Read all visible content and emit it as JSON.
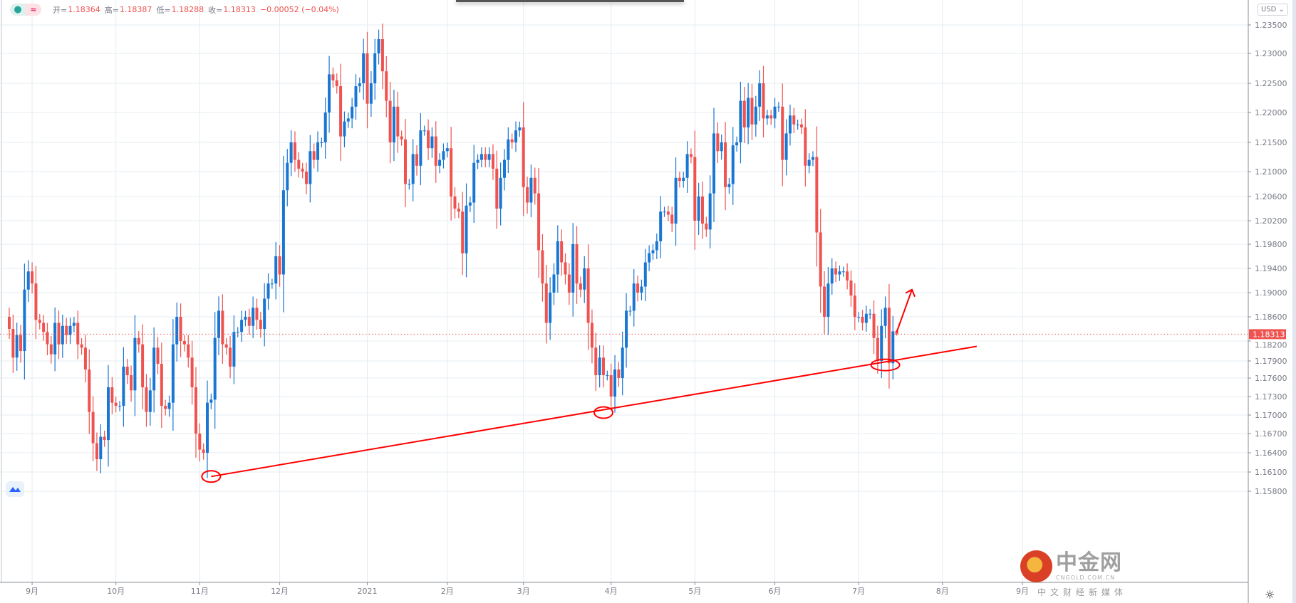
{
  "legend": {
    "open_label": "开=",
    "open": "1.18364",
    "high_label": "高=",
    "high": "1.18387",
    "low_label": "低=",
    "low": "1.18288",
    "close_label": "收=",
    "close": "1.18313",
    "change": "−0.00052 (−0.04%)",
    "status_icon": "dot-icon",
    "approx_icon": "≈"
  },
  "currency_button": "USD ⌄",
  "watermark": {
    "name": "中金网",
    "url": "CNGOLD.COM.CN",
    "tagline": "中文财经新媒体"
  },
  "colors": {
    "up": "#1976d2",
    "down": "#ef5350",
    "grid": "#e4ecf2",
    "trendline": "#ff0000",
    "price_label": "#ef5350"
  },
  "chart_data": {
    "type": "candlestick",
    "y_ticks": [
      1.235,
      1.23,
      1.225,
      1.22,
      1.215,
      1.21,
      1.206,
      1.202,
      1.198,
      1.194,
      1.19,
      1.186,
      1.182,
      1.179,
      1.176,
      1.173,
      1.17,
      1.167,
      1.164,
      1.161,
      1.158
    ],
    "y_tick_labels": [
      "1.23500",
      "1.23000",
      "1.22500",
      "1.22000",
      "1.21500",
      "1.21000",
      "1.20600",
      "1.20200",
      "1.19800",
      "1.19400",
      "1.19000",
      "1.18600",
      "1.18200",
      "1.17900",
      "1.17600",
      "1.17300",
      "1.17000",
      "1.16700",
      "1.16400",
      "1.16100",
      "1.15800"
    ],
    "x_tick_labels": [
      "9月",
      "10月",
      "11月",
      "12月",
      "2021",
      "2月",
      "3月",
      "4月",
      "5月",
      "6月",
      "7月",
      "8月",
      "9月"
    ],
    "x_tick_bars": [
      6,
      28,
      50,
      71,
      94,
      115,
      135,
      158,
      180,
      201,
      223,
      245,
      266
    ],
    "current_price": 1.18313,
    "current_price_label": "1.18313",
    "grid": true,
    "first_open": 1.186,
    "closes": [
      1.184,
      1.1795,
      1.183,
      1.1805,
      1.1905,
      1.1935,
      1.1915,
      1.1855,
      1.185,
      1.1835,
      1.1815,
      1.18,
      1.185,
      1.1815,
      1.1845,
      1.183,
      1.1845,
      1.185,
      1.1815,
      1.181,
      1.1775,
      1.1705,
      1.1655,
      1.163,
      1.1665,
      1.166,
      1.1745,
      1.172,
      1.1715,
      1.1715,
      1.178,
      1.1765,
      1.174,
      1.1825,
      1.1815,
      1.1745,
      1.1705,
      1.174,
      1.181,
      1.1785,
      1.1715,
      1.171,
      1.172,
      1.1815,
      1.186,
      1.182,
      1.1815,
      1.1795,
      1.1745,
      1.167,
      1.1645,
      1.164,
      1.172,
      1.1725,
      1.1825,
      1.187,
      1.1815,
      1.181,
      1.178,
      1.1835,
      1.1835,
      1.1855,
      1.186,
      1.1845,
      1.1875,
      1.1855,
      1.184,
      1.189,
      1.1915,
      1.1915,
      1.196,
      1.193,
      1.207,
      1.2115,
      1.215,
      1.212,
      1.2105,
      1.21,
      1.208,
      1.2135,
      1.212,
      1.215,
      1.215,
      1.22,
      1.2265,
      1.2255,
      1.2245,
      1.216,
      1.2185,
      1.219,
      1.221,
      1.2245,
      1.225,
      1.23,
      1.2215,
      1.225,
      1.23,
      1.2325,
      1.227,
      1.222,
      1.215,
      1.221,
      1.216,
      1.2155,
      1.208,
      1.208,
      1.213,
      1.211,
      1.217,
      1.217,
      1.214,
      1.216,
      1.211,
      1.212,
      1.2135,
      1.214,
      1.206,
      1.204,
      1.2035,
      1.1965,
      1.2045,
      1.205,
      1.2115,
      1.212,
      1.213,
      1.212,
      1.213,
      1.2105,
      1.204,
      1.209,
      1.212,
      1.2155,
      1.215,
      1.217,
      1.2175,
      1.2075,
      1.205,
      1.209,
      1.2065,
      1.197,
      1.1915,
      1.185,
      1.19,
      1.193,
      1.1985,
      1.195,
      1.193,
      1.19,
      1.198,
      1.1915,
      1.1905,
      1.194,
      1.185,
      1.181,
      1.1765,
      1.1795,
      1.1765,
      1.1765,
      1.173,
      1.1775,
      1.176,
      1.181,
      1.187,
      1.187,
      1.1915,
      1.19,
      1.191,
      1.195,
      1.1965,
      1.197,
      1.1985,
      1.2035,
      1.2035,
      1.203,
      1.2015,
      1.209,
      1.2085,
      1.209,
      1.213,
      1.2125,
      1.202,
      1.206,
      1.2015,
      1.2005,
      1.2065,
      1.2165,
      1.2135,
      1.215,
      1.2075,
      1.208,
      1.2145,
      1.215,
      1.222,
      1.2175,
      1.2225,
      1.218,
      1.221,
      1.225,
      1.219,
      1.2195,
      1.219,
      1.221,
      1.221,
      1.212,
      1.2165,
      1.2195,
      1.218,
      1.218,
      1.2175,
      1.211,
      1.212,
      1.2125,
      1.2,
      1.191,
      1.186,
      1.1915,
      1.194,
      1.193,
      1.1935,
      1.1935,
      1.192,
      1.1895,
      1.186,
      1.186,
      1.185,
      1.1865,
      1.1865,
      1.1825,
      1.179,
      1.1845,
      1.1875,
      1.1786,
      1.1836,
      1.18313
    ],
    "last_candle": {
      "open": 1.18364,
      "high": 1.18387,
      "low": 1.18288,
      "close": 1.18313
    },
    "annotations": {
      "trendline": {
        "from_bar": 53,
        "from_price": 1.1603,
        "to_bar": 254,
        "to_price": 1.1812
      },
      "circled_lows": [
        {
          "bar": 53,
          "price": 1.1603
        },
        {
          "bar": 156,
          "price": 1.1704
        },
        {
          "bar": 230,
          "price": 1.1783
        }
      ],
      "arrow": {
        "from_bar": 233,
        "from_price": 1.1835,
        "to_bar": 237,
        "to_price": 1.1905
      }
    }
  }
}
